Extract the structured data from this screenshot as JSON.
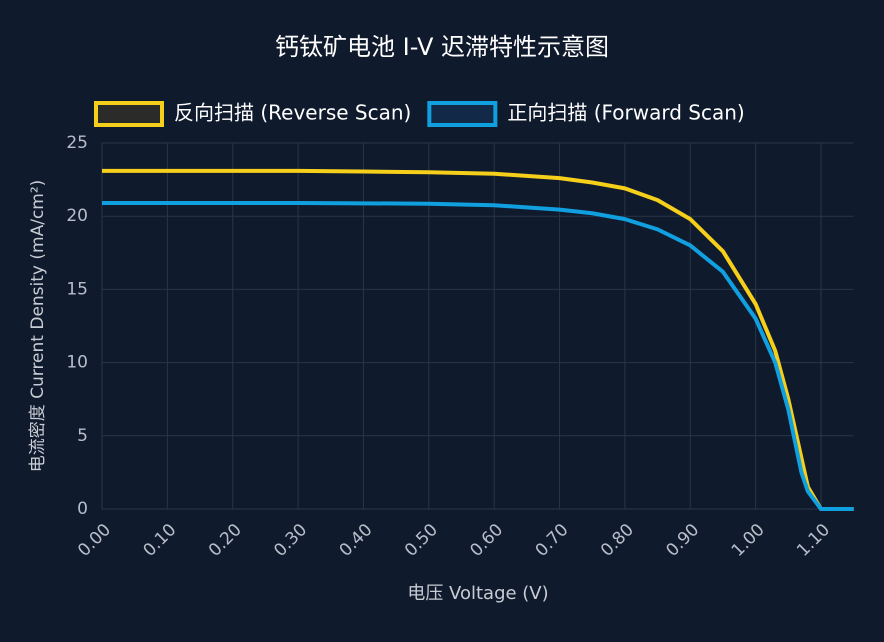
{
  "chart_data": {
    "type": "line",
    "title": "钙钛矿电池 I-V 迟滞特性示意图",
    "x_label": "电压 Voltage (V)",
    "y_label": "电流密度 Current Density (mA/cm²)",
    "x": [
      0,
      0.1,
      0.2,
      0.3,
      0.4,
      0.5,
      0.6,
      0.7,
      0.75,
      0.8,
      0.85,
      0.9,
      0.95,
      1.0,
      1.03,
      1.05,
      1.07,
      1.08,
      1.1,
      1.15
    ],
    "series": [
      {
        "name": "反向扫描 (Reverse Scan)",
        "color": "#f5cf1a",
        "fill": "#2b2c2a",
        "values": [
          23.1,
          23.1,
          23.1,
          23.1,
          23.05,
          23.0,
          22.9,
          22.6,
          22.3,
          21.9,
          21.1,
          19.8,
          17.6,
          14.0,
          10.8,
          7.5,
          3.5,
          1.5,
          0,
          0
        ]
      },
      {
        "name": "正向扫描 (Forward Scan)",
        "color": "#10a0e0",
        "fill": "#122a48",
        "values": [
          20.9,
          20.9,
          20.9,
          20.9,
          20.88,
          20.85,
          20.75,
          20.45,
          20.2,
          19.8,
          19.1,
          18.0,
          16.2,
          13.0,
          10.0,
          6.8,
          2.5,
          1.2,
          0,
          0
        ]
      }
    ],
    "xlim": [
      0,
      1.15
    ],
    "ylim": [
      0,
      25
    ],
    "xticks": [
      {
        "value": 0,
        "label": "0.00"
      },
      {
        "value": 0.1,
        "label": "0.10"
      },
      {
        "value": 0.2,
        "label": "0.20"
      },
      {
        "value": 0.3,
        "label": "0.30"
      },
      {
        "value": 0.4,
        "label": "0.40"
      },
      {
        "value": 0.5,
        "label": "0.50"
      },
      {
        "value": 0.6,
        "label": "0.60"
      },
      {
        "value": 0.7,
        "label": "0.70"
      },
      {
        "value": 0.8,
        "label": "0.80"
      },
      {
        "value": 0.9,
        "label": "0.90"
      },
      {
        "value": 1.0,
        "label": "1.00"
      },
      {
        "value": 1.1,
        "label": "1.10"
      }
    ],
    "yticks": [
      0,
      5,
      10,
      15,
      20,
      25
    ],
    "grid": true,
    "legend": "top"
  }
}
